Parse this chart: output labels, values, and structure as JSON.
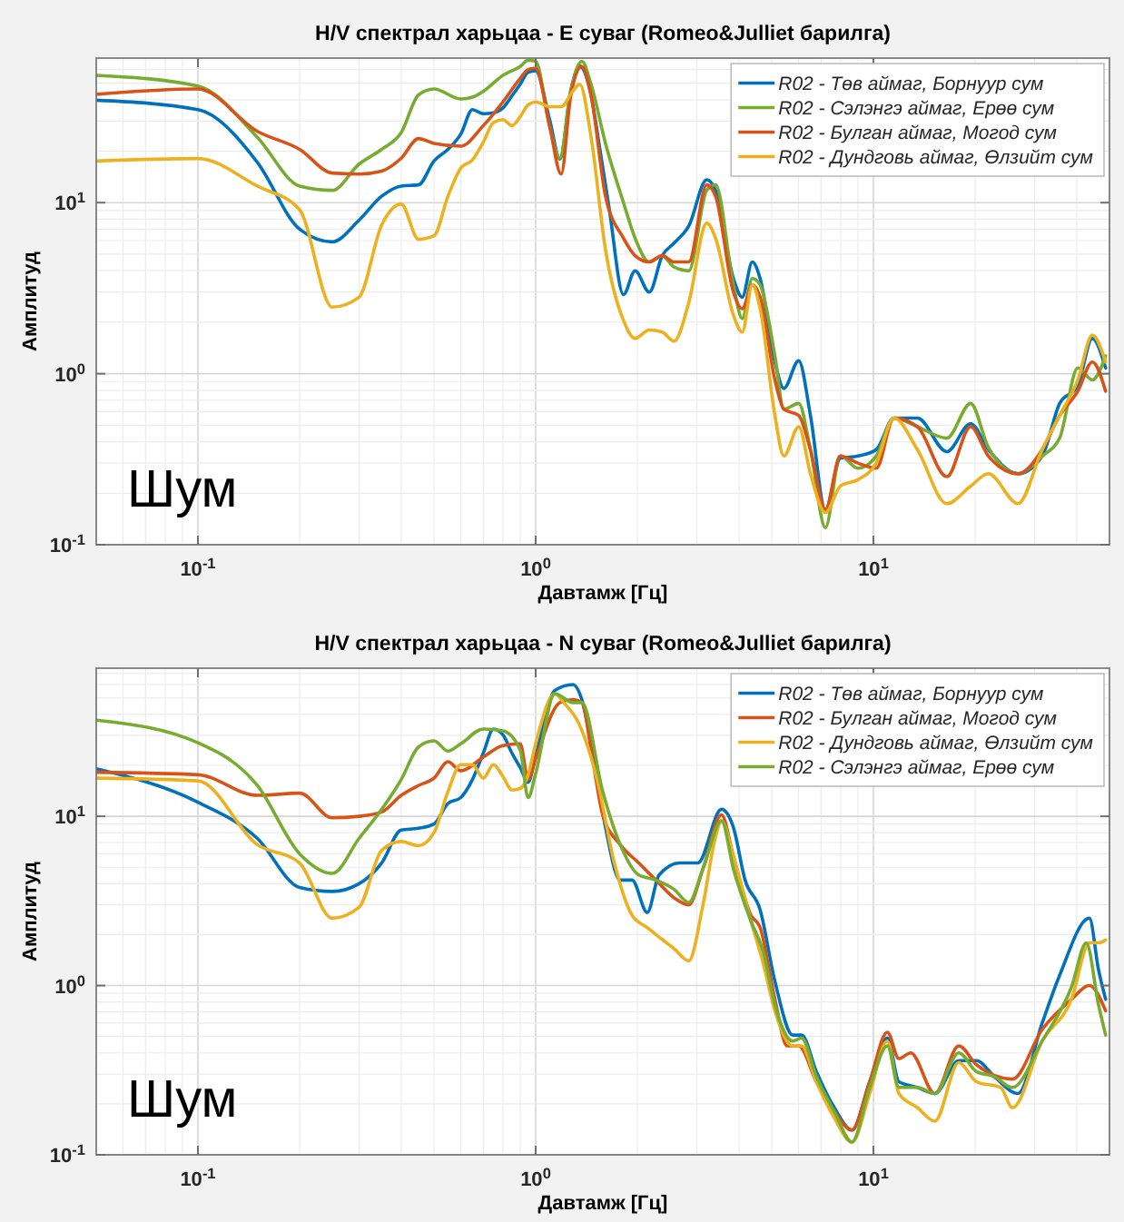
{
  "chart_data": [
    {
      "type": "line",
      "title": "H/V спектрал харьцаа - E суваг (Romeo&Julliet барилга)",
      "xlabel": "Давтамж [Гц]",
      "ylabel": "Амплитуд",
      "log": "xy",
      "xlim": [
        0.05,
        50
      ],
      "ylim": [
        0.1,
        70
      ],
      "xticks": [
        {
          "value": 0.1,
          "label": "10$^{-1}$"
        },
        {
          "value": 1,
          "label": "10$^{0}$"
        },
        {
          "value": 10,
          "label": "10$^{1}$"
        }
      ],
      "yticks": [
        {
          "value": 0.1,
          "label": "10$^{-1}$"
        },
        {
          "value": 1,
          "label": "10$^{0}$"
        },
        {
          "value": 10,
          "label": "10$^{1}$"
        }
      ],
      "grid": true,
      "legend": "top right",
      "annotations": [
        "Шум"
      ],
      "series": [
        {
          "name": "R02 - Төв аймаг, Борнуур сум",
          "color": "#0072bd",
          "x": [
            0.05,
            0.1,
            0.15,
            0.2,
            0.25,
            0.3,
            0.35,
            0.4,
            0.45,
            0.5,
            0.55,
            0.6,
            0.65,
            0.7,
            0.75,
            0.8,
            0.85,
            0.9,
            0.95,
            1.0,
            1.1,
            1.18,
            1.27,
            1.35,
            1.45,
            1.55,
            1.65,
            1.82,
            1.97,
            2.17,
            2.37,
            2.57,
            2.84,
            3.21,
            3.41,
            3.85,
            4.09,
            4.38,
            4.62,
            5.11,
            5.43,
            6.01,
            6.51,
            7.21,
            7.98,
            9.0,
            10.2,
            11.5,
            13.5,
            16.5,
            19.4,
            21.9,
            26.8,
            31.6,
            35.6,
            40.3,
            44.5,
            48.7
          ],
          "values": [
            39.7,
            35,
            17.2,
            7,
            5.9,
            7.9,
            10.9,
            12.5,
            12.7,
            17.5,
            20.5,
            25.1,
            35,
            33.1,
            33.5,
            35.8,
            42,
            49.3,
            57.8,
            59,
            30.6,
            18,
            45,
            63,
            45,
            20.5,
            9.3,
            2.9,
            4,
            3,
            4.9,
            5.8,
            7.3,
            13.6,
            11.8,
            3.6,
            2.8,
            4.5,
            3.6,
            1.17,
            0.82,
            1.19,
            0.57,
            0.16,
            0.32,
            0.33,
            0.36,
            0.55,
            0.55,
            0.35,
            0.51,
            0.36,
            0.26,
            0.33,
            0.67,
            0.85,
            1.61,
            1.08
          ]
        },
        {
          "name": "R02 - Сэлэнгэ аймаг, Ерөө сум",
          "color": "#77ac30",
          "x": [
            0.05,
            0.1,
            0.15,
            0.2,
            0.25,
            0.3,
            0.35,
            0.4,
            0.45,
            0.5,
            0.6,
            0.65,
            0.7,
            0.8,
            0.9,
            0.95,
            1.0,
            1.1,
            1.18,
            1.27,
            1.37,
            1.46,
            1.61,
            1.82,
            1.97,
            2.17,
            2.37,
            2.57,
            2.84,
            3.21,
            3.41,
            3.85,
            4.09,
            4.38,
            4.62,
            5.11,
            5.43,
            6.01,
            6.51,
            7.21,
            7.98,
            9.0,
            10.2,
            11.5,
            13.5,
            16.5,
            19.4,
            21.9,
            26.8,
            31.6,
            35.6,
            40.3,
            44.5,
            48.7
          ],
          "values": [
            55.5,
            48.1,
            24.1,
            12.5,
            11.8,
            16.8,
            20.5,
            25.7,
            42.7,
            46.2,
            40.4,
            41.4,
            44.8,
            55.5,
            62.5,
            68,
            67,
            28,
            18.2,
            45,
            67,
            49,
            22.2,
            10,
            6.2,
            4.5,
            4.9,
            4.2,
            4,
            11.8,
            12.7,
            3.3,
            2.1,
            3.6,
            3.3,
            1.27,
            0.62,
            0.67,
            0.36,
            0.126,
            0.33,
            0.28,
            0.33,
            0.55,
            0.49,
            0.42,
            0.67,
            0.37,
            0.26,
            0.33,
            0.42,
            1.08,
            0.92,
            1.27
          ]
        },
        {
          "name": "R02 - Булган аймаг, Могод сум",
          "color": "#d95319",
          "x": [
            0.05,
            0.1,
            0.15,
            0.2,
            0.25,
            0.3,
            0.35,
            0.4,
            0.45,
            0.5,
            0.6,
            0.7,
            0.8,
            0.9,
            0.95,
            1.0,
            1.1,
            1.19,
            1.27,
            1.37,
            1.46,
            1.61,
            1.82,
            1.97,
            2.17,
            2.37,
            2.57,
            2.84,
            3.21,
            3.41,
            3.85,
            4.09,
            4.38,
            4.62,
            5.11,
            5.43,
            6.01,
            6.51,
            7.21,
            7.98,
            9.0,
            10.2,
            11.5,
            13.5,
            16.5,
            19.4,
            21.9,
            26.8,
            31.6,
            35.6,
            40.3,
            44.5,
            48.7
          ],
          "values": [
            43,
            46.2,
            26.1,
            20.5,
            14.9,
            14.7,
            15.3,
            18.2,
            23.7,
            22.2,
            21.4,
            28.2,
            38.8,
            53.3,
            60,
            61,
            28,
            14.7,
            42,
            62.5,
            42,
            10.9,
            6.2,
            4.9,
            4.5,
            4.9,
            4.5,
            4.5,
            12.7,
            10.9,
            3,
            2.4,
            3.3,
            2.8,
            0.92,
            0.62,
            0.57,
            0.36,
            0.16,
            0.33,
            0.3,
            0.28,
            0.55,
            0.49,
            0.25,
            0.49,
            0.33,
            0.26,
            0.36,
            0.57,
            0.79,
            1.17,
            0.79
          ]
        },
        {
          "name": "R02 - Дундговь аймаг, Өлзийт сум",
          "color": "#edb120",
          "x": [
            0.05,
            0.1,
            0.15,
            0.2,
            0.25,
            0.3,
            0.35,
            0.4,
            0.45,
            0.5,
            0.55,
            0.6,
            0.65,
            0.7,
            0.75,
            0.8,
            0.85,
            0.9,
            0.95,
            1.0,
            1.1,
            1.19,
            1.29,
            1.35,
            1.46,
            1.61,
            1.82,
            1.97,
            2.17,
            2.37,
            2.57,
            2.84,
            3.21,
            3.41,
            3.85,
            4.09,
            4.38,
            4.62,
            5.11,
            5.43,
            6.01,
            6.51,
            7.21,
            7.98,
            9.0,
            10.2,
            11.5,
            13.5,
            16.5,
            19.4,
            21.9,
            26.8,
            31.6,
            35.6,
            40.3,
            44.5,
            48.7
          ],
          "values": [
            17.5,
            18.1,
            12.5,
            9.1,
            2.45,
            2.8,
            7.4,
            9.8,
            6.1,
            6.4,
            10.9,
            15.9,
            17.8,
            22.6,
            29.4,
            30.6,
            28.2,
            31.8,
            37.3,
            38.8,
            36.4,
            36.4,
            45,
            49.3,
            24,
            5.3,
            2.05,
            1.61,
            1.8,
            1.75,
            1.55,
            2.6,
            7.6,
            6.2,
            2.2,
            1.75,
            3.3,
            2.4,
            0.57,
            0.33,
            0.49,
            0.26,
            0.154,
            0.22,
            0.24,
            0.3,
            0.55,
            0.36,
            0.174,
            0.22,
            0.26,
            0.174,
            0.36,
            0.57,
            0.92,
            1.68,
            1.17
          ]
        }
      ]
    },
    {
      "type": "line",
      "title": "H/V спектрал харьцаа - N суваг (Romeo&Julliet барилга)",
      "xlabel": "Давтамж [Гц]",
      "ylabel": "Амплитуд",
      "log": "xy",
      "xlim": [
        0.05,
        50
      ],
      "ylim": [
        0.1,
        75
      ],
      "xticks": [
        {
          "value": 0.1,
          "label": "10$^{-1}$"
        },
        {
          "value": 1,
          "label": "10$^{0}$"
        },
        {
          "value": 10,
          "label": "10$^{1}$"
        }
      ],
      "yticks": [
        {
          "value": 0.1,
          "label": "10$^{-1}$"
        },
        {
          "value": 1,
          "label": "10$^{0}$"
        },
        {
          "value": 10,
          "label": "10$^{1}$"
        }
      ],
      "grid": true,
      "legend": "top right",
      "annotations": [
        "Шум"
      ],
      "series": [
        {
          "name": "R02 - Төв аймаг, Борнуур сум",
          "color": "#0072bd",
          "x": [
            0.05,
            0.1,
            0.15,
            0.2,
            0.25,
            0.3,
            0.35,
            0.4,
            0.45,
            0.5,
            0.55,
            0.6,
            0.65,
            0.7,
            0.75,
            0.8,
            0.85,
            0.9,
            0.95,
            1.0,
            1.14,
            1.29,
            1.37,
            1.5,
            1.61,
            1.78,
            1.93,
            2.14,
            2.32,
            2.67,
            3.02,
            3.55,
            3.85,
            4.17,
            4.62,
            5.11,
            5.77,
            6.13,
            6.78,
            7.66,
            8.64,
            9.75,
            11.0,
            11.9,
            13.5,
            15.2,
            17.9,
            20.2,
            22.8,
            26.8,
            31.6,
            35.6,
            43.6,
            46.4,
            48.7
          ],
          "values": [
            19.1,
            12.1,
            7.4,
            3.8,
            3.6,
            4,
            5.3,
            8.3,
            8.5,
            9,
            11.9,
            12.9,
            16.5,
            23.7,
            32.8,
            30.3,
            23.7,
            19.4,
            15.9,
            22.8,
            55.4,
            60,
            49,
            19.4,
            8.6,
            4.2,
            4.2,
            2.7,
            4.5,
            5.3,
            5.3,
            11,
            8.6,
            4.2,
            2.8,
            1.06,
            0.51,
            0.51,
            0.31,
            0.19,
            0.14,
            0.27,
            0.49,
            0.27,
            0.25,
            0.23,
            0.36,
            0.36,
            0.29,
            0.23,
            0.6,
            1.15,
            2.5,
            1.24,
            0.83
          ]
        },
        {
          "name": "R02 - Булган аймаг, Могод сум",
          "color": "#d95319",
          "x": [
            0.05,
            0.1,
            0.15,
            0.2,
            0.25,
            0.3,
            0.35,
            0.4,
            0.45,
            0.5,
            0.55,
            0.6,
            0.7,
            0.8,
            0.9,
            0.95,
            1.0,
            1.18,
            1.29,
            1.37,
            1.47,
            1.58,
            1.78,
            2.02,
            2.27,
            2.57,
            2.84,
            3.13,
            3.55,
            3.85,
            4.34,
            4.62,
            5.11,
            5.55,
            6.01,
            6.78,
            7.66,
            8.64,
            9.75,
            11.0,
            11.9,
            12.9,
            15.2,
            17.9,
            20.2,
            25.8,
            31.6,
            38.6,
            43.6,
            48.7
          ],
          "values": [
            18.2,
            17.6,
            13.3,
            13.7,
            9.8,
            10,
            10.6,
            13.3,
            15.2,
            16.8,
            21,
            18.6,
            22.4,
            26.2,
            26.8,
            16.5,
            21.9,
            47,
            49,
            47,
            22.6,
            10.2,
            6.8,
            5.3,
            4.2,
            3.3,
            3,
            4.9,
            10.2,
            5.8,
            2.6,
            2.2,
            0.83,
            0.44,
            0.44,
            0.27,
            0.18,
            0.14,
            0.27,
            0.53,
            0.37,
            0.4,
            0.23,
            0.44,
            0.34,
            0.28,
            0.55,
            0.83,
            1,
            0.71
          ]
        },
        {
          "name": "R02 - Дундговь аймаг, Өлзийт сум",
          "color": "#edb120",
          "x": [
            0.05,
            0.1,
            0.15,
            0.2,
            0.25,
            0.3,
            0.35,
            0.4,
            0.45,
            0.5,
            0.55,
            0.6,
            0.65,
            0.7,
            0.75,
            0.8,
            0.85,
            0.9,
            0.95,
            1.0,
            1.14,
            1.21,
            1.34,
            1.52,
            1.71,
            1.93,
            2.14,
            2.27,
            2.57,
            2.84,
            3.13,
            3.4,
            3.55,
            3.85,
            4.34,
            4.72,
            5.11,
            5.77,
            6.13,
            6.78,
            7.66,
            8.64,
            9.75,
            11.0,
            11.9,
            13.5,
            15.2,
            17.9,
            20.2,
            23.8,
            25.8,
            31.6,
            38.6,
            43.6,
            46.4,
            48.7
          ],
          "values": [
            16.8,
            16.2,
            6.8,
            5.3,
            2.5,
            2.9,
            6.3,
            7.1,
            6.7,
            8,
            14,
            20.2,
            20.2,
            16.8,
            20.2,
            17.2,
            14.3,
            14.6,
            17.6,
            26.8,
            53,
            47,
            35.6,
            16.5,
            5.3,
            2.6,
            2.2,
            2,
            1.65,
            1.4,
            3,
            7.4,
            9.4,
            5.8,
            2.4,
            1.35,
            0.71,
            0.44,
            0.44,
            0.27,
            0.165,
            0.119,
            0.23,
            0.47,
            0.23,
            0.19,
            0.158,
            0.35,
            0.27,
            0.25,
            0.19,
            0.47,
            0.83,
            1.79,
            1.79,
            1.86
          ]
        },
        {
          "name": "R02 - Сэлэнгэ аймаг, Ерөө сум",
          "color": "#77ac30",
          "x": [
            0.05,
            0.1,
            0.15,
            0.2,
            0.25,
            0.3,
            0.35,
            0.4,
            0.45,
            0.5,
            0.55,
            0.6,
            0.7,
            0.8,
            0.9,
            0.95,
            1.0,
            1.14,
            1.29,
            1.37,
            1.58,
            1.78,
            2.02,
            2.27,
            2.57,
            2.84,
            3.13,
            3.55,
            3.85,
            4.34,
            4.72,
            5.11,
            5.77,
            6.13,
            6.78,
            7.66,
            8.64,
            9.75,
            11.0,
            11.9,
            13.5,
            15.2,
            17.9,
            20.2,
            22.8,
            25.8,
            31.6,
            38.6,
            42.7,
            46.4,
            48.7
          ],
          "values": [
            37,
            27.2,
            15.2,
            6,
            4.6,
            7.4,
            11,
            16.5,
            25.7,
            27.9,
            24.3,
            26.8,
            32.8,
            32,
            24.7,
            12.9,
            17.9,
            53,
            47,
            47,
            14,
            6.8,
            4.5,
            4.2,
            3.7,
            3.1,
            4.9,
            9.4,
            4.9,
            2.4,
            1.58,
            0.77,
            0.47,
            0.49,
            0.29,
            0.18,
            0.119,
            0.25,
            0.44,
            0.25,
            0.25,
            0.23,
            0.4,
            0.31,
            0.29,
            0.25,
            0.47,
            0.98,
            1.79,
            0.77,
            0.51
          ]
        }
      ]
    }
  ]
}
